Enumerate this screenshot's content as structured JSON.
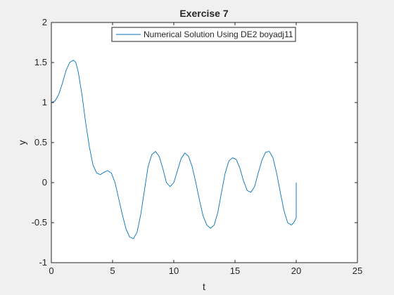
{
  "figure": {
    "background": "#f0f0f0",
    "axes_background": "#ffffff",
    "axis_color": "#262626"
  },
  "chart_data": {
    "type": "line",
    "title": "Exercise 7",
    "xlabel": "t",
    "ylabel": "y",
    "xlim": [
      0,
      25
    ],
    "ylim": [
      -1,
      2
    ],
    "xticks": [
      0,
      5,
      10,
      15,
      20,
      25
    ],
    "yticks": [
      -1,
      -0.5,
      0,
      0.5,
      1,
      1.5,
      2
    ],
    "xtick_labels": [
      "0",
      "5",
      "10",
      "15",
      "20",
      "25"
    ],
    "ytick_labels": [
      "-1",
      "-0.5",
      "0",
      "0.5",
      "1",
      "1.5",
      "2"
    ],
    "grid": false,
    "legend_position": "top",
    "series": [
      {
        "name": "Numerical Solution Using DE2 boyadj11",
        "color": "#0072bd",
        "x": [
          0,
          0.3,
          0.6,
          0.9,
          1.2,
          1.5,
          1.8,
          2.0,
          2.2,
          2.5,
          2.8,
          3.1,
          3.4,
          3.7,
          4.0,
          4.3,
          4.6,
          4.9,
          5.2,
          5.5,
          5.8,
          6.1,
          6.4,
          6.7,
          7.0,
          7.3,
          7.6,
          7.9,
          8.2,
          8.5,
          8.8,
          9.1,
          9.4,
          9.7,
          10.0,
          10.3,
          10.6,
          10.9,
          11.2,
          11.5,
          11.8,
          12.1,
          12.4,
          12.7,
          13.0,
          13.3,
          13.6,
          13.9,
          14.2,
          14.5,
          14.8,
          15.1,
          15.4,
          15.7,
          16.0,
          16.3,
          16.6,
          16.9,
          17.2,
          17.5,
          17.8,
          18.1,
          18.4,
          18.7,
          19.0,
          19.3,
          19.6,
          19.8,
          20.0,
          20.0
        ],
        "y": [
          1.0,
          1.02,
          1.1,
          1.24,
          1.4,
          1.5,
          1.53,
          1.5,
          1.38,
          1.1,
          0.75,
          0.45,
          0.22,
          0.12,
          0.1,
          0.13,
          0.15,
          0.12,
          0.0,
          -0.2,
          -0.4,
          -0.58,
          -0.68,
          -0.7,
          -0.62,
          -0.4,
          -0.1,
          0.2,
          0.35,
          0.39,
          0.33,
          0.18,
          0.0,
          -0.05,
          0.0,
          0.15,
          0.3,
          0.37,
          0.33,
          0.2,
          0.0,
          -0.22,
          -0.42,
          -0.53,
          -0.57,
          -0.53,
          -0.37,
          -0.12,
          0.12,
          0.27,
          0.31,
          0.29,
          0.18,
          0.02,
          -0.1,
          -0.12,
          -0.05,
          0.12,
          0.28,
          0.38,
          0.39,
          0.31,
          0.12,
          -0.12,
          -0.35,
          -0.5,
          -0.53,
          -0.5,
          -0.44,
          0.0
        ]
      }
    ]
  }
}
